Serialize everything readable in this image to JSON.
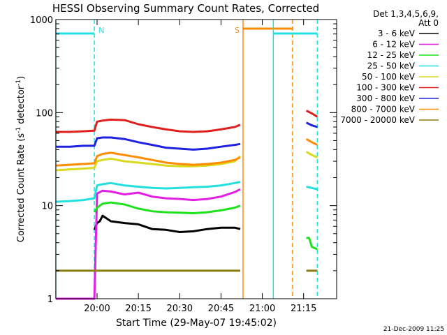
{
  "chart_data": {
    "type": "line",
    "title": "HESSI Observing Summary Count Rates, Corrected",
    "xlabel": "Start Time (29-May-07 19:45:02)",
    "ylabel_main": "Corrected Count Rate (s",
    "ylabel_sup1": "-1",
    "ylabel_mid": " detector",
    "ylabel_sup2": "-1",
    "ylabel_end": ")",
    "yscale": "log",
    "xlim": [
      "19:45:02",
      "21:27:00"
    ],
    "ylim": [
      1,
      1000
    ],
    "x_ticks": [
      "20:00",
      "20:15",
      "20:30",
      "20:45",
      "21:00",
      "21:15"
    ],
    "y_ticks": [
      "1",
      "10",
      "100",
      "1000"
    ],
    "legend_title_1": "Det 1,3,4,5,6,9,",
    "legend_title_2": "Att 0",
    "legend_position": "right",
    "series": [
      {
        "name": "3 - 6 keV",
        "color": "#000000",
        "segments": [
          {
            "x": [
              "19:59",
              "20:00",
              "20:01",
              "20:02",
              "20:05",
              "20:10",
              "20:15",
              "20:20",
              "20:25",
              "20:30",
              "20:35",
              "20:40",
              "20:45",
              "20:50",
              "20:52"
            ],
            "y": [
              5.5,
              6.5,
              6.8,
              7.8,
              6.8,
              6.5,
              6.3,
              5.6,
              5.5,
              5.2,
              5.3,
              5.6,
              5.8,
              5.8,
              5.6
            ]
          }
        ]
      },
      {
        "name": "6 - 12 keV",
        "color": "#e21fe2",
        "segments": [
          {
            "x": [
              "19:45",
              "19:50",
              "19:55",
              "19:59",
              "20:00",
              "20:02",
              "20:05",
              "20:10",
              "20:15",
              "20:20",
              "20:25",
              "20:30",
              "20:35",
              "20:40",
              "20:45",
              "20:50",
              "20:52"
            ],
            "y": [
              1,
              1,
              1,
              1,
              13.5,
              14.5,
              14.2,
              13.2,
              13.8,
              12.5,
              12.0,
              11.8,
              11.5,
              11.8,
              12.5,
              14,
              15
            ]
          }
        ]
      },
      {
        "name": "12 - 25 keV",
        "color": "#1fe21f",
        "segments": [
          {
            "x": [
              "19:59",
              "20:00",
              "20:02",
              "20:05",
              "20:10",
              "20:15",
              "20:20",
              "20:25",
              "20:30",
              "20:35",
              "20:40",
              "20:45",
              "20:50",
              "20:52"
            ],
            "y": [
              8.5,
              9.5,
              10.5,
              10.8,
              10.3,
              9.3,
              8.7,
              8.5,
              8.4,
              8.3,
              8.5,
              8.9,
              9.5,
              10
            ]
          },
          {
            "x": [
              "21:16",
              "21:17",
              "21:18",
              "21:19",
              "21:20"
            ],
            "y": [
              4.5,
              4.5,
              3.6,
              3.5,
              3.4
            ]
          }
        ]
      },
      {
        "name": "25 - 50 keV",
        "color": "#22e0e0",
        "segments": [
          {
            "x": [
              "19:45",
              "19:50",
              "19:55",
              "19:59",
              "20:00",
              "20:02",
              "20:05",
              "20:10",
              "20:15",
              "20:20",
              "20:25",
              "20:30",
              "20:35",
              "20:40",
              "20:45",
              "20:50",
              "20:52"
            ],
            "y": [
              11,
              11.2,
              11.5,
              12,
              16.5,
              17,
              17.5,
              16.5,
              16,
              15.5,
              15.3,
              15.5,
              15.8,
              16,
              16.5,
              17.5,
              18
            ]
          },
          {
            "x": [
              "21:16",
              "21:18",
              "21:20"
            ],
            "y": [
              16,
              15.5,
              15
            ]
          }
        ]
      },
      {
        "name": "50 - 100 keV",
        "color": "#d9d91f",
        "segments": [
          {
            "x": [
              "19:45",
              "19:50",
              "19:55",
              "19:59",
              "20:00",
              "20:02",
              "20:05",
              "20:10",
              "20:15",
              "20:20",
              "20:25",
              "20:30",
              "20:35",
              "20:40",
              "20:45",
              "20:50",
              "20:52"
            ],
            "y": [
              24,
              24.5,
              25,
              25.5,
              30,
              31,
              32,
              30,
              29,
              28,
              27,
              26.5,
              26.5,
              27,
              28,
              30,
              34
            ]
          },
          {
            "x": [
              "21:16",
              "21:18",
              "21:20"
            ],
            "y": [
              38,
              35,
              33
            ]
          }
        ]
      },
      {
        "name": "100 - 300 keV",
        "color": "#e21f1f",
        "segments": [
          {
            "x": [
              "19:45",
              "19:50",
              "19:55",
              "19:59",
              "20:00",
              "20:02",
              "20:05",
              "20:10",
              "20:15",
              "20:20",
              "20:25",
              "20:30",
              "20:35",
              "20:40",
              "20:45",
              "20:50",
              "20:52"
            ],
            "y": [
              62,
              62,
              63,
              64,
              80,
              82,
              84,
              83,
              75,
              70,
              66,
              63,
              62,
              63,
              66,
              70,
              74
            ]
          },
          {
            "x": [
              "21:16",
              "21:18",
              "21:20"
            ],
            "y": [
              105,
              98,
              90
            ]
          }
        ]
      },
      {
        "name": "300 - 800 keV",
        "color": "#2020e2",
        "segments": [
          {
            "x": [
              "19:45",
              "19:50",
              "19:55",
              "19:59",
              "20:00",
              "20:02",
              "20:05",
              "20:10",
              "20:15",
              "20:20",
              "20:25",
              "20:30",
              "20:35",
              "20:40",
              "20:45",
              "20:50",
              "20:52"
            ],
            "y": [
              43,
              43,
              44,
              44,
              53,
              54,
              54,
              52,
              48,
              45,
              42,
              41,
              40,
              41,
              43,
              45,
              46
            ]
          },
          {
            "x": [
              "21:16",
              "21:18",
              "21:20"
            ],
            "y": [
              78,
              73,
              70
            ]
          }
        ]
      },
      {
        "name": "800 - 7000 keV",
        "color": "#ff8c00",
        "segments": [
          {
            "x": [
              "19:45",
              "19:50",
              "19:55",
              "19:59",
              "20:00",
              "20:02",
              "20:05",
              "20:10",
              "20:15",
              "20:20",
              "20:25",
              "20:30",
              "20:35",
              "20:40",
              "20:45",
              "20:50",
              "20:52"
            ],
            "y": [
              27,
              27.5,
              28,
              28.5,
              34,
              36,
              37,
              35,
              33,
              31,
              29,
              28,
              27.5,
              28,
              29,
              31,
              33
            ]
          },
          {
            "x": [
              "21:16",
              "21:18",
              "21:20"
            ],
            "y": [
              52,
              48,
              45
            ]
          }
        ]
      },
      {
        "name": "7000 - 20000 keV",
        "color": "#8b7d15",
        "segments": [
          {
            "x": [
              "19:45",
              "19:50",
              "19:55",
              "20:00",
              "20:05",
              "20:10",
              "20:15",
              "20:20",
              "20:25",
              "20:30",
              "20:35",
              "20:40",
              "20:45",
              "20:50",
              "20:52"
            ],
            "y": [
              2,
              2,
              2,
              2,
              2,
              2,
              2,
              2,
              2,
              2,
              2,
              2,
              2,
              2,
              2
            ]
          },
          {
            "x": [
              "21:16",
              "21:18",
              "21:20"
            ],
            "y": [
              2,
              2,
              2
            ]
          }
        ]
      }
    ],
    "markers": [
      {
        "label": "N",
        "color": "#22e0e0",
        "bar_from": "19:45",
        "bar_to": "19:59",
        "line_solid_at": "19:45",
        "line_dashed_at": "19:59"
      },
      {
        "label": "S",
        "color": "#ff8c00",
        "bar_from": "20:53",
        "bar_to": "21:11",
        "line_solid_at": "20:53",
        "line_dashed_at": "21:11"
      },
      {
        "label": "",
        "color": "#22e0e0",
        "bar_from": "21:04",
        "bar_to": "21:20",
        "line_solid_at": "21:04",
        "line_dashed_at": "21:20"
      }
    ],
    "footer_date": "21-Dec-2009 11:25"
  }
}
